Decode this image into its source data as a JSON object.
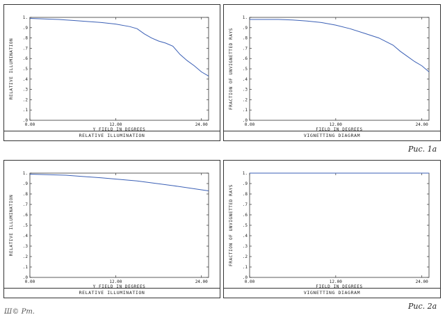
{
  "figure_labels": {
    "fig1": "Рис. 1а",
    "fig2": "Рис. 2а"
  },
  "signature": "Ш© Рт.",
  "chart_data": [
    {
      "type": "line",
      "caption": "RELATIVE ILLUMINATION",
      "xlabel": "Y FIELD IN DEGREES",
      "ylabel": "RELATIVE ILLUMINATION",
      "xlim": [
        0,
        25
      ],
      "ylim": [
        0,
        1
      ],
      "x_ticks": [
        "0.00",
        "12.00",
        "24.00"
      ],
      "y_ticks": [
        ".0",
        ".1",
        ".2",
        ".3",
        ".4",
        ".5",
        ".6",
        ".7",
        ".8",
        ".9",
        "1."
      ],
      "grid": false,
      "series": [
        {
          "color": "#3a5fb5",
          "x": [
            0,
            2,
            4,
            6,
            8,
            10,
            12,
            14,
            15,
            16,
            17,
            18,
            19,
            20,
            21,
            22,
            23,
            24,
            25
          ],
          "y": [
            0.99,
            0.985,
            0.98,
            0.97,
            0.96,
            0.95,
            0.935,
            0.91,
            0.89,
            0.84,
            0.8,
            0.77,
            0.75,
            0.72,
            0.64,
            0.58,
            0.53,
            0.47,
            0.43
          ]
        }
      ]
    },
    {
      "type": "line",
      "caption": "VIGNETTING DIAGRAM",
      "xlabel": "FIELD IN DEGREES",
      "ylabel": "FRACTION OF UNVIGNETTED RAYS",
      "xlim": [
        0,
        25
      ],
      "ylim": [
        0,
        1
      ],
      "x_ticks": [
        "0.00",
        "12.00",
        "24.00"
      ],
      "y_ticks": [
        ".0",
        ".1",
        ".2",
        ".3",
        ".4",
        ".5",
        ".6",
        ".7",
        ".8",
        ".9",
        "1."
      ],
      "grid": false,
      "series": [
        {
          "color": "#3a5fb5",
          "x": [
            0,
            2,
            4,
            6,
            8,
            10,
            12,
            14,
            16,
            18,
            20,
            21,
            22,
            23,
            24,
            25
          ],
          "y": [
            0.98,
            0.98,
            0.98,
            0.975,
            0.965,
            0.95,
            0.925,
            0.89,
            0.845,
            0.8,
            0.73,
            0.67,
            0.62,
            0.57,
            0.53,
            0.47
          ]
        }
      ]
    },
    {
      "type": "line",
      "caption": "RELATIVE ILLUMINATION",
      "xlabel": "Y FIELD IN DEGREES",
      "ylabel": "RELATIVE ILLUMINATION",
      "xlim": [
        0,
        25
      ],
      "ylim": [
        0,
        1
      ],
      "x_ticks": [
        "0.00",
        "12.00",
        "24.00"
      ],
      "y_ticks": [
        ".0",
        ".1",
        ".2",
        ".3",
        ".4",
        ".5",
        ".6",
        ".7",
        ".8",
        ".9",
        "1."
      ],
      "grid": false,
      "series": [
        {
          "color": "#3a5fb5",
          "x": [
            0,
            5,
            10,
            15,
            20,
            25
          ],
          "y": [
            0.99,
            0.98,
            0.955,
            0.925,
            0.88,
            0.83
          ]
        }
      ]
    },
    {
      "type": "line",
      "caption": "VIGNETTING DIAGRAM",
      "xlabel": "FIELD IN DEGREES",
      "ylabel": "FRACTION OF UNVIGNETTED RAYS",
      "xlim": [
        0,
        25
      ],
      "ylim": [
        0,
        1
      ],
      "x_ticks": [
        "0.00",
        "12.00",
        "24.00"
      ],
      "y_ticks": [
        ".0",
        ".1",
        ".2",
        ".3",
        ".4",
        ".5",
        ".6",
        ".7",
        ".8",
        ".9",
        "1."
      ],
      "grid": false,
      "series": [
        {
          "color": "#3a5fb5",
          "x": [
            0,
            25
          ],
          "y": [
            1.0,
            1.0
          ]
        }
      ]
    }
  ]
}
